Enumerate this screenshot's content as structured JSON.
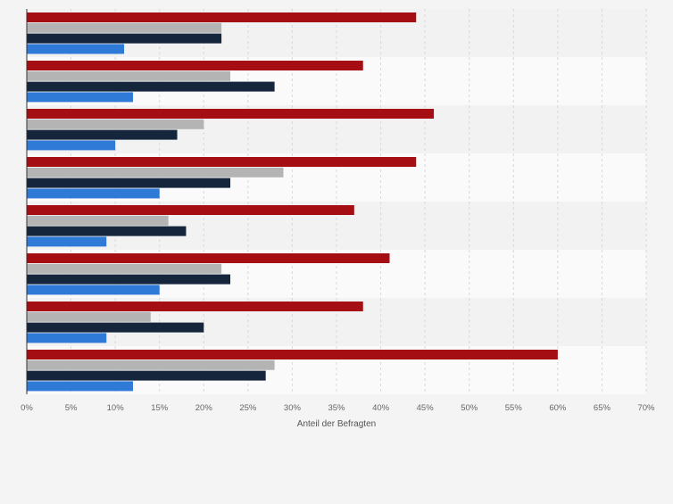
{
  "chart_data": {
    "type": "bar",
    "orientation": "horizontal",
    "xlabel": "Anteil der Befragten",
    "xlim": [
      0,
      70
    ],
    "x_ticks": [
      "0%",
      "5%",
      "10%",
      "15%",
      "20%",
      "25%",
      "30%",
      "35%",
      "40%",
      "45%",
      "50%",
      "55%",
      "60%",
      "65%",
      "70%"
    ],
    "grid": true,
    "legend": "none",
    "series_colors": [
      "#a50e12",
      "#b4b4b4",
      "#14253c",
      "#2e7ad6"
    ],
    "groups": [
      [
        44,
        22,
        22,
        11
      ],
      [
        38,
        23,
        28,
        12
      ],
      [
        46,
        20,
        17,
        10
      ],
      [
        44,
        29,
        23,
        15
      ],
      [
        37,
        16,
        18,
        9
      ],
      [
        41,
        22,
        23,
        15
      ],
      [
        38,
        14,
        20,
        9
      ],
      [
        60,
        28,
        27,
        12
      ]
    ]
  }
}
